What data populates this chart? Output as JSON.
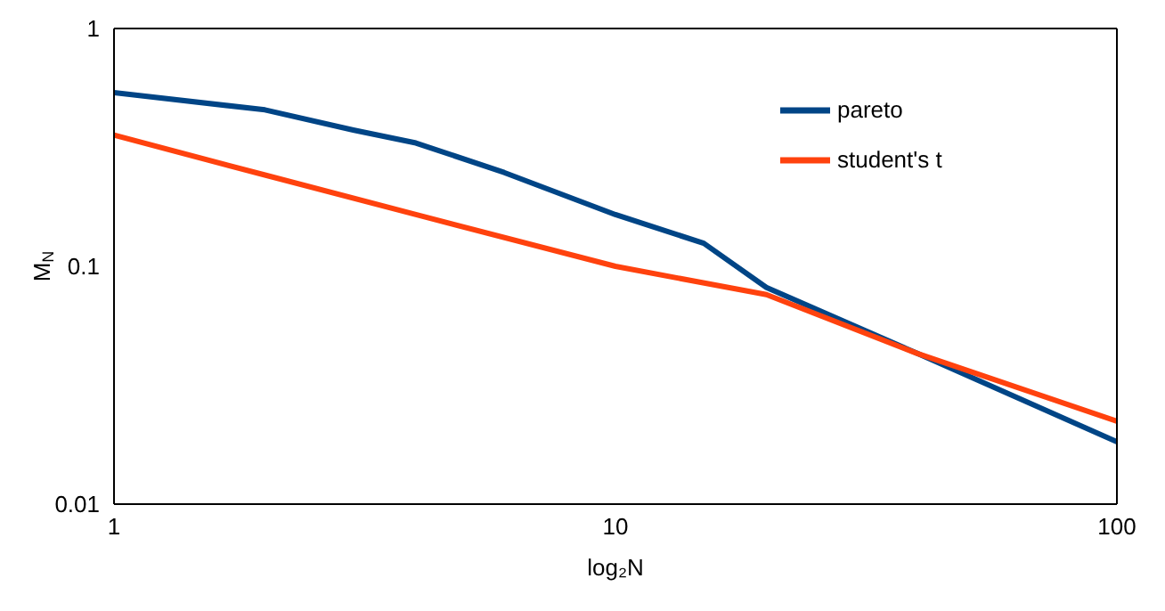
{
  "chart_data": {
    "type": "line",
    "xlabel": "log₂N",
    "ylabel": "M$_{N}$",
    "log": "xy",
    "xlim": [
      1,
      100
    ],
    "xticks": [
      1,
      10,
      100
    ],
    "ylim": [
      0.01,
      1
    ],
    "yticks": [
      0.01,
      0.1,
      1
    ],
    "grid": false,
    "legend": "top right",
    "marker": "none",
    "line_style": "solid",
    "series": [
      {
        "name": "pareto",
        "color": "#004586",
        "x": [
          1,
          2,
          3,
          4,
          6,
          10,
          15,
          20,
          40,
          100
        ],
        "values": [
          0.537,
          0.455,
          0.374,
          0.33,
          0.248,
          0.165,
          0.125,
          0.0815,
          0.043,
          0.0183
        ]
      },
      {
        "name": "student's t",
        "color": "#ff420e",
        "x": [
          1,
          2,
          4,
          10,
          20,
          40,
          100
        ],
        "values": [
          0.356,
          0.242,
          0.165,
          0.1,
          0.076,
          0.043,
          0.0223
        ]
      }
    ]
  }
}
